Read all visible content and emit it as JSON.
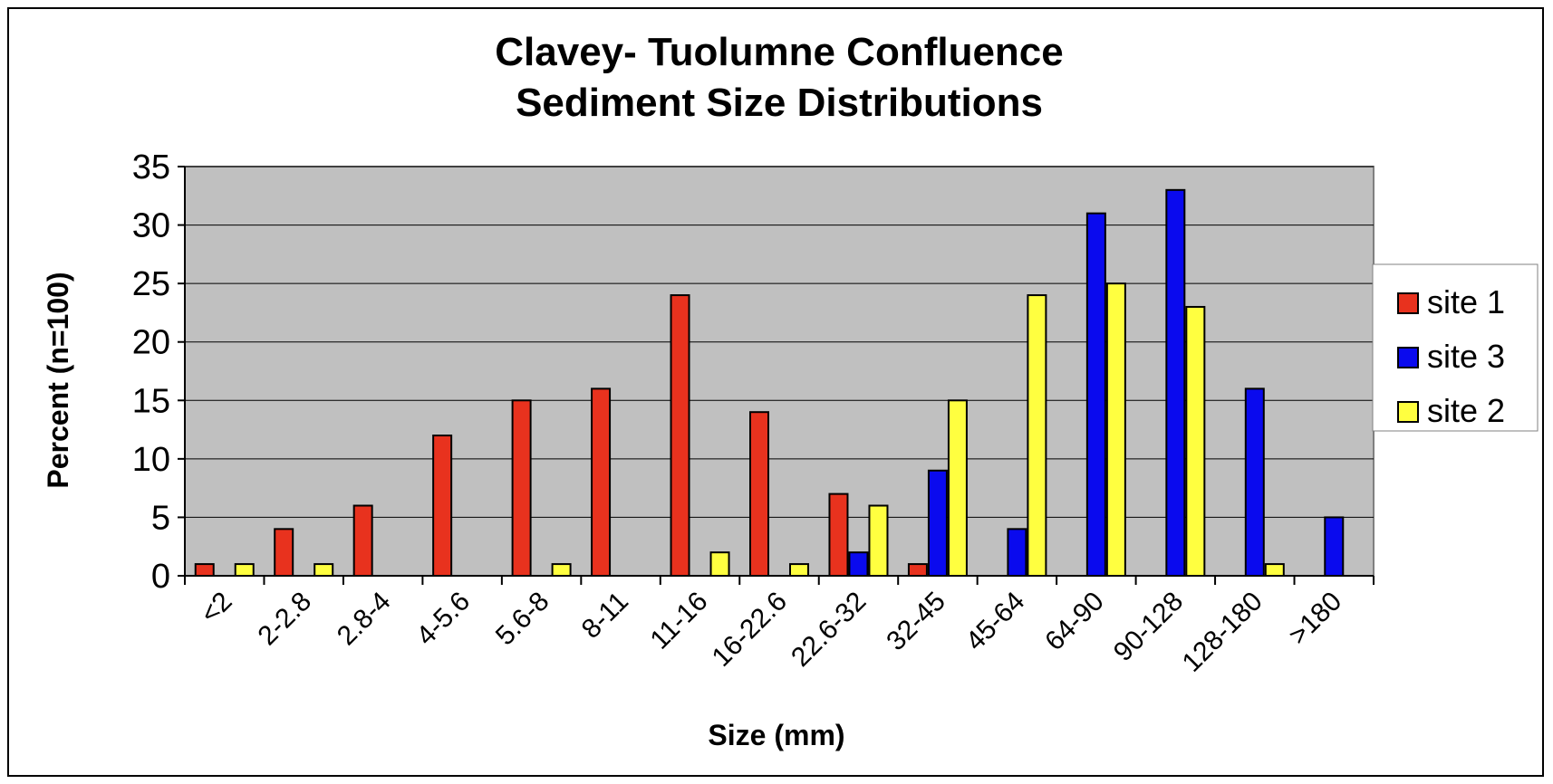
{
  "chart_data": {
    "type": "bar",
    "title": "Clavey- Tuolumne Confluence",
    "subtitle": "Sediment Size Distributions",
    "xlabel": "Size (mm)",
    "ylabel": "Percent (n=100)",
    "ylim": [
      0,
      35
    ],
    "yticks": [
      0,
      5,
      10,
      15,
      20,
      25,
      30,
      35
    ],
    "grid": true,
    "legend_position": "right",
    "plot_background": "#c0c0c0",
    "categories": [
      "<2",
      "2-2.8",
      "2.8-4",
      "4-5.6",
      "5.6-8",
      "8-11",
      "11-16",
      "16-22.6",
      "22.6-32",
      "32-45",
      "45-64",
      "64-90",
      "90-128",
      "128-180",
      ">180"
    ],
    "series": [
      {
        "name": "site 1",
        "color": "#e8321e",
        "values": [
          1,
          4,
          6,
          12,
          15,
          16,
          24,
          14,
          7,
          1,
          0,
          0,
          0,
          0,
          0
        ]
      },
      {
        "name": "site 3",
        "color": "#0a0aee",
        "values": [
          0,
          0,
          0,
          0,
          0,
          0,
          0,
          0,
          2,
          9,
          4,
          31,
          33,
          16,
          5
        ]
      },
      {
        "name": "site 2",
        "color": "#ffff40",
        "values": [
          1,
          1,
          0,
          0,
          1,
          0,
          2,
          1,
          6,
          15,
          24,
          25,
          23,
          1,
          0
        ]
      }
    ]
  }
}
